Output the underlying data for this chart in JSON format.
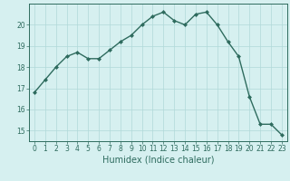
{
  "x": [
    0,
    1,
    2,
    3,
    4,
    5,
    6,
    7,
    8,
    9,
    10,
    11,
    12,
    13,
    14,
    15,
    16,
    17,
    18,
    19,
    20,
    21,
    22,
    23
  ],
  "y": [
    16.8,
    17.4,
    18.0,
    18.5,
    18.7,
    18.4,
    18.4,
    18.8,
    19.2,
    19.5,
    20.0,
    20.4,
    20.6,
    20.2,
    20.0,
    20.5,
    20.6,
    20.0,
    19.2,
    18.5,
    16.6,
    15.3,
    15.3,
    14.8
  ],
  "line_color": "#2e6b5e",
  "marker": "D",
  "marker_size": 2.0,
  "bg_color": "#d6f0f0",
  "grid_color": "#b0d8d8",
  "xlabel": "Humidex (Indice chaleur)",
  "xlim": [
    -0.5,
    23.5
  ],
  "ylim": [
    14.5,
    21.0
  ],
  "yticks": [
    15,
    16,
    17,
    18,
    19,
    20
  ],
  "xticks": [
    0,
    1,
    2,
    3,
    4,
    5,
    6,
    7,
    8,
    9,
    10,
    11,
    12,
    13,
    14,
    15,
    16,
    17,
    18,
    19,
    20,
    21,
    22,
    23
  ],
  "tick_color": "#2e6b5e",
  "label_color": "#2e6b5e",
  "fontsize_ticks": 5.5,
  "fontsize_label": 7.0,
  "linewidth": 1.0
}
